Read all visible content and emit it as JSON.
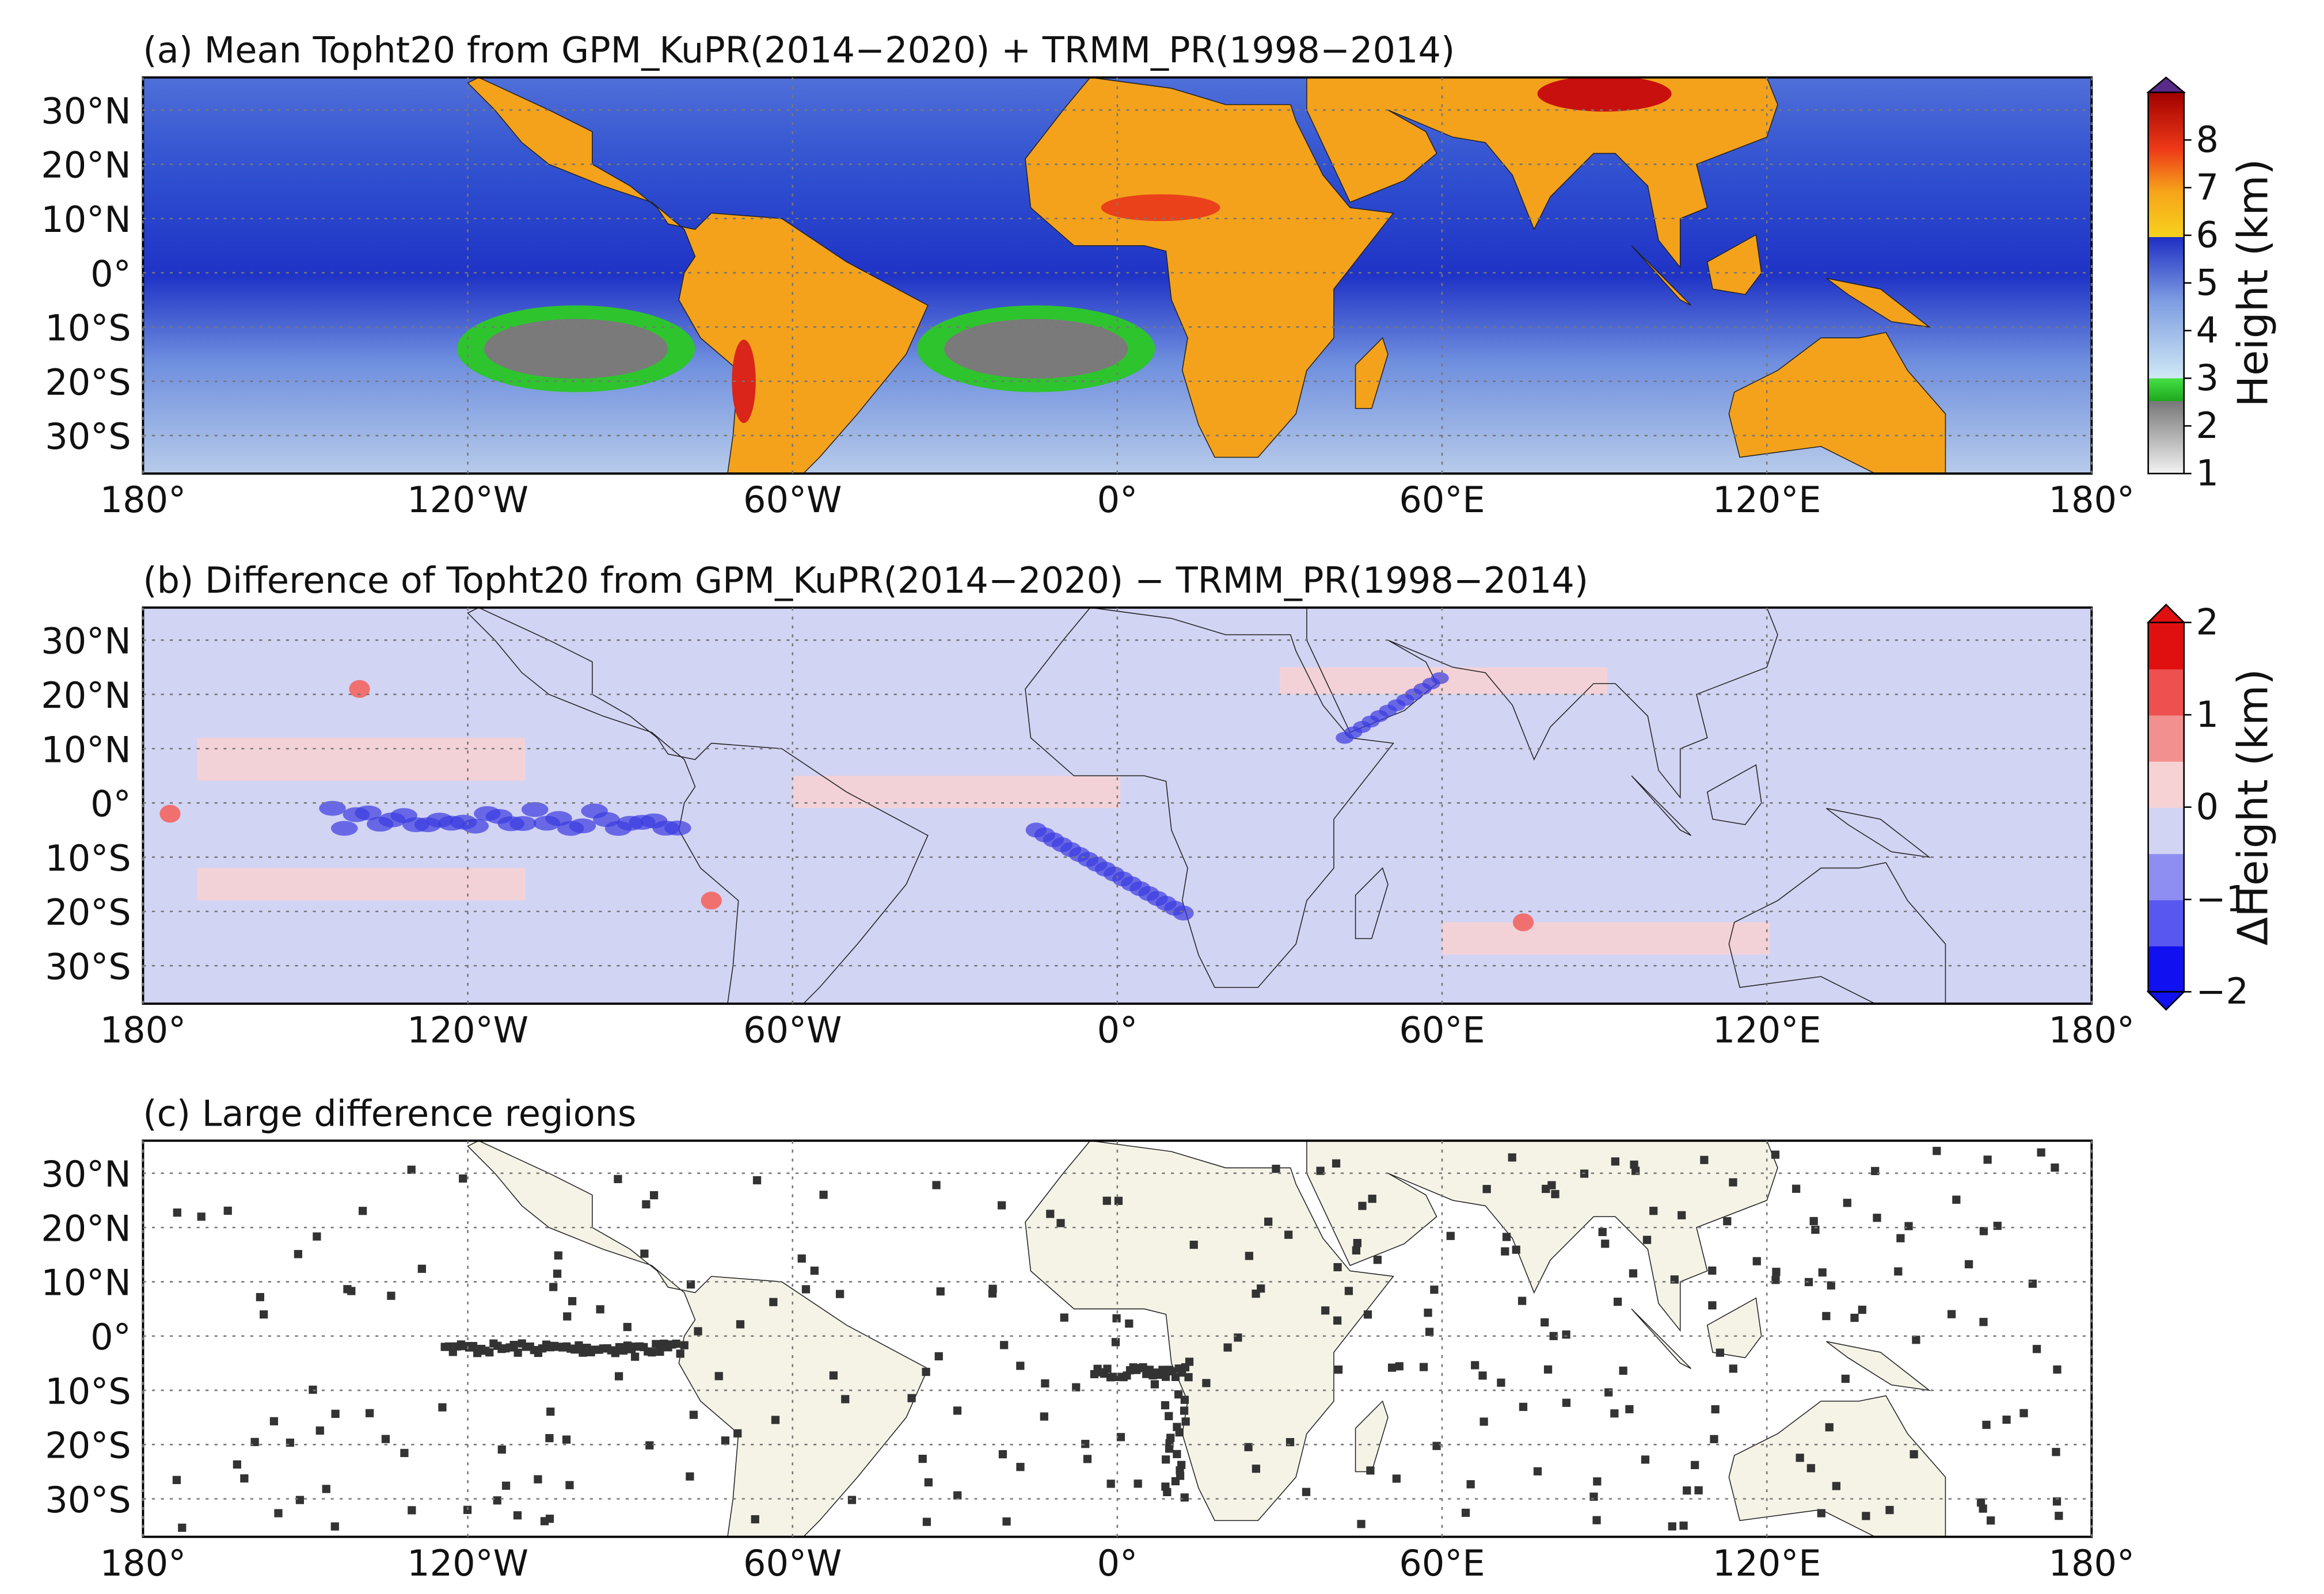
{
  "panels": [
    {
      "title": "(a) Mean Topht20 from GPM_KuPR(2014−2020) + TRMM_PR(1998−2014)",
      "colorbar": {
        "label": "Height (km)",
        "lim": [
          1,
          9
        ],
        "ticks": [
          1,
          2,
          3,
          4,
          5,
          6,
          7,
          8
        ]
      }
    },
    {
      "title": "(b) Difference of Topht20 from GPM_KuPR(2014−2020) − TRMM_PR(1998−2014)",
      "colorbar": {
        "label": "ΔHeight (km)",
        "lim": [
          -2,
          2
        ],
        "ticks": [
          {
            "value": -2,
            "label": "−2"
          },
          {
            "value": -1,
            "label": "−1"
          },
          0,
          1,
          2
        ]
      }
    },
    {
      "title": "(c) Large difference regions"
    }
  ],
  "map": {
    "xlim": [
      -180,
      180
    ],
    "ylim": [
      -37,
      36
    ],
    "xticks": [
      {
        "value": -180,
        "label": "180°"
      },
      {
        "value": -120,
        "label": "120°W"
      },
      {
        "value": -60,
        "label": "60°W"
      },
      {
        "value": 0,
        "label": "0°"
      },
      {
        "value": 60,
        "label": "60°E"
      },
      {
        "value": 120,
        "label": "120°E"
      },
      {
        "value": 180,
        "label": "180°"
      }
    ],
    "yticks": [
      {
        "value": 30,
        "label": "30°N"
      },
      {
        "value": 20,
        "label": "20°N"
      },
      {
        "value": 10,
        "label": "10°N"
      },
      {
        "value": 0,
        "label": "0°"
      },
      {
        "value": -10,
        "label": "10°S"
      },
      {
        "value": -20,
        "label": "20°S"
      },
      {
        "value": -30,
        "label": "30°S"
      }
    ]
  }
}
